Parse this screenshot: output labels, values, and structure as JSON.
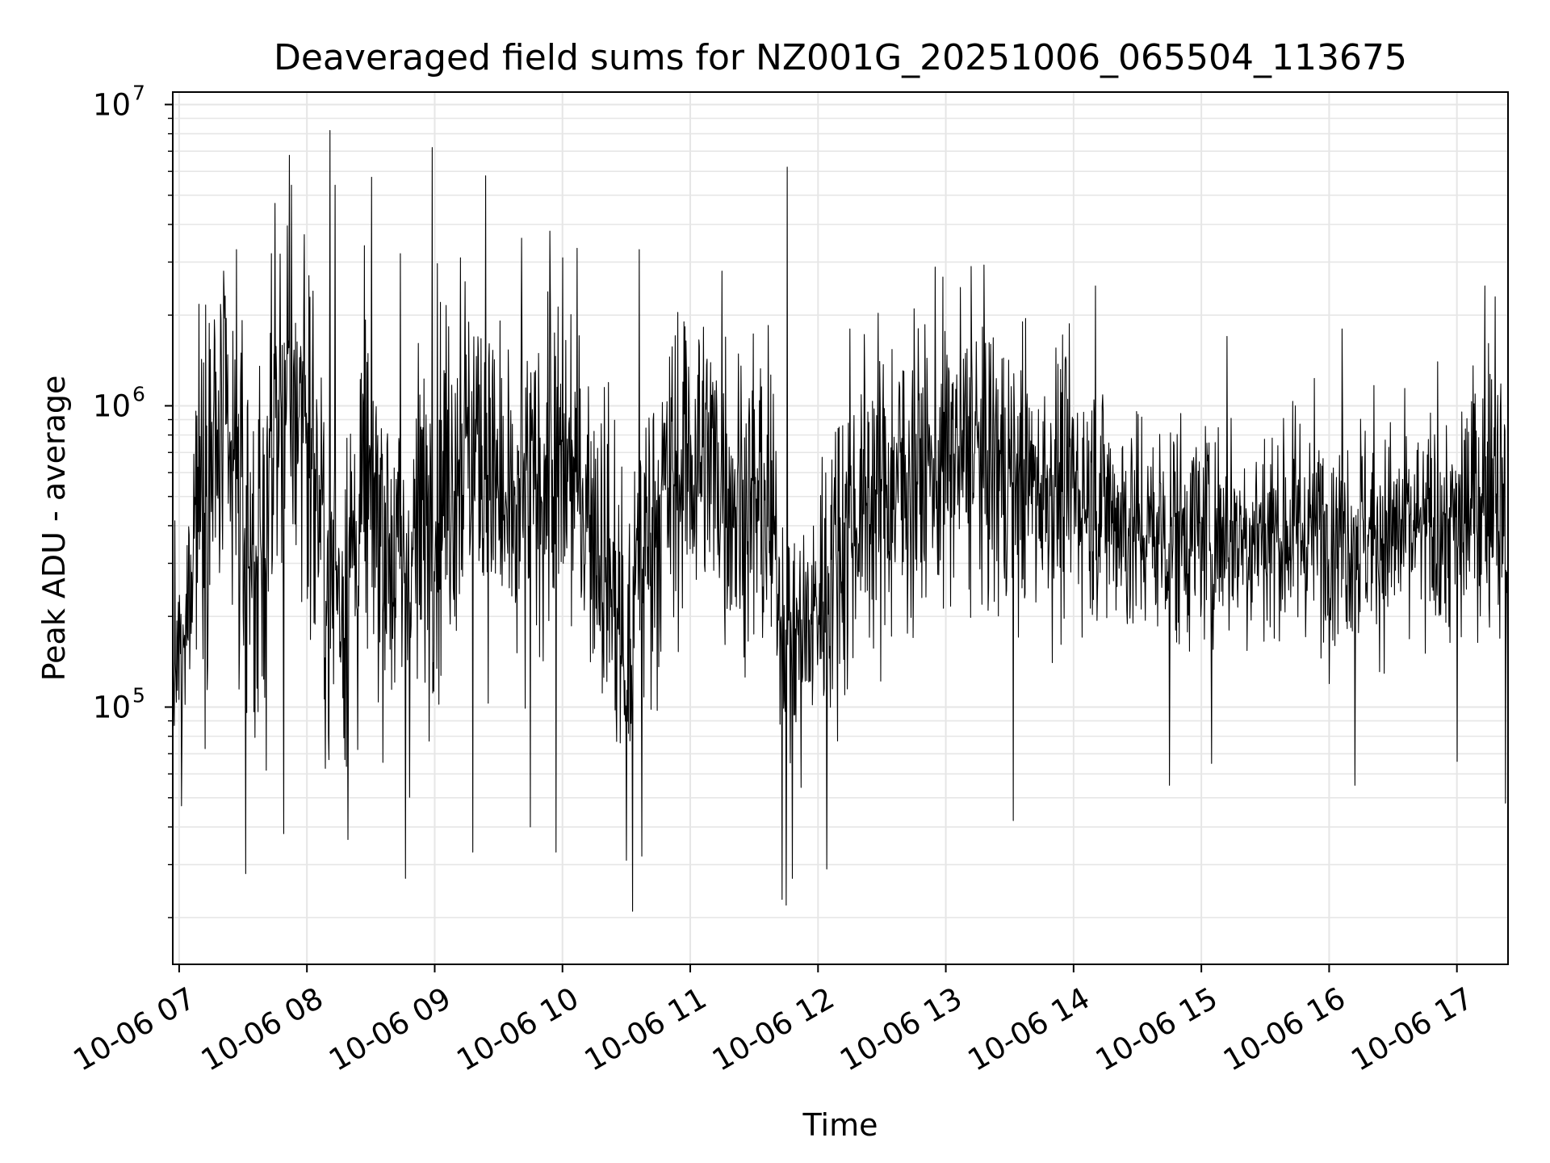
{
  "chart_data": {
    "type": "line",
    "title": "Deaveraged field sums for NZ001G_20251006_065504_113675",
    "xlabel": "Time",
    "ylabel": "Peak ADU - average",
    "yscale": "log",
    "ylim": [
      14000,
      11000000
    ],
    "xlim_hours": [
      6.95,
      17.4
    ],
    "grid": true,
    "line_color": "#000000",
    "grid_color": "#e6e6e6",
    "x_ticks": [
      {
        "hour": 7,
        "label": "10-06 07"
      },
      {
        "hour": 8,
        "label": "10-06 08"
      },
      {
        "hour": 9,
        "label": "10-06 09"
      },
      {
        "hour": 10,
        "label": "10-06 10"
      },
      {
        "hour": 11,
        "label": "10-06 11"
      },
      {
        "hour": 12,
        "label": "10-06 12"
      },
      {
        "hour": 13,
        "label": "10-06 13"
      },
      {
        "hour": 14,
        "label": "10-06 14"
      },
      {
        "hour": 15,
        "label": "10-06 15"
      },
      {
        "hour": 16,
        "label": "10-06 16"
      },
      {
        "hour": 17,
        "label": "10-06 17"
      }
    ],
    "y_ticks": [
      {
        "value": 100000,
        "base": "10",
        "exp": "5"
      },
      {
        "value": 1000000,
        "base": "10",
        "exp": "6"
      },
      {
        "value": 10000000,
        "base": "10",
        "exp": "7"
      }
    ],
    "envelope": {
      "hours": [
        6.95,
        7.05,
        7.15,
        7.3,
        7.5,
        7.65,
        7.8,
        7.95,
        8.15,
        8.3,
        8.5,
        8.75,
        9.0,
        9.3,
        9.6,
        9.85,
        10.1,
        10.35,
        10.5,
        10.65,
        10.85,
        11.1,
        11.35,
        11.6,
        11.72,
        11.78,
        11.95,
        12.1,
        12.4,
        12.8,
        13.2,
        13.6,
        14.0,
        14.5,
        15.0,
        15.5,
        16.0,
        16.5,
        17.0,
        17.15,
        17.3,
        17.37,
        17.4
      ],
      "center": [
        140000,
        140000,
        600000,
        700000,
        420000,
        250000,
        1000000,
        1000000,
        250000,
        250000,
        500000,
        250000,
        500000,
        800000,
        350000,
        600000,
        600000,
        300000,
        130000,
        350000,
        550000,
        700000,
        500000,
        450000,
        200000,
        160000,
        180000,
        300000,
        500000,
        600000,
        700000,
        550000,
        550000,
        380000,
        380000,
        380000,
        400000,
        370000,
        380000,
        500000,
        600000,
        450000,
        120000
      ],
      "spread": [
        0.3,
        0.3,
        0.55,
        0.55,
        0.5,
        0.6,
        0.6,
        0.55,
        0.55,
        0.6,
        0.55,
        0.55,
        0.55,
        0.5,
        0.5,
        0.5,
        0.5,
        0.5,
        0.45,
        0.5,
        0.5,
        0.45,
        0.45,
        0.5,
        0.35,
        0.4,
        0.4,
        0.45,
        0.45,
        0.45,
        0.45,
        0.4,
        0.4,
        0.35,
        0.35,
        0.35,
        0.35,
        0.35,
        0.35,
        0.4,
        0.4,
        0.4,
        0.3
      ]
    },
    "spikes_high": [
      [
        7.35,
        2800000
      ],
      [
        7.45,
        3300000
      ],
      [
        7.72,
        3200000
      ],
      [
        7.75,
        4700000
      ],
      [
        7.88,
        5400000
      ],
      [
        7.98,
        3700000
      ],
      [
        8.18,
        8200000
      ],
      [
        8.22,
        5400000
      ],
      [
        8.45,
        3400000
      ],
      [
        8.73,
        3200000
      ],
      [
        8.98,
        7200000
      ],
      [
        9.2,
        3100000
      ],
      [
        9.4,
        5800000
      ],
      [
        9.68,
        3600000
      ],
      [
        9.9,
        3800000
      ],
      [
        10.0,
        3100000
      ],
      [
        10.6,
        3300000
      ],
      [
        10.95,
        1900000
      ],
      [
        11.25,
        2800000
      ],
      [
        11.76,
        6200000
      ],
      [
        12.25,
        1800000
      ],
      [
        12.75,
        2100000
      ],
      [
        13.2,
        2900000
      ],
      [
        13.35,
        1600000
      ],
      [
        13.6,
        1900000
      ],
      [
        14.17,
        2500000
      ],
      [
        15.2,
        1700000
      ],
      [
        16.1,
        1800000
      ],
      [
        16.85,
        1400000
      ],
      [
        17.22,
        2500000
      ],
      [
        17.3,
        2300000
      ]
    ],
    "spikes_low": [
      [
        7.02,
        47000
      ],
      [
        7.52,
        28000
      ],
      [
        7.82,
        38000
      ],
      [
        8.77,
        27000
      ],
      [
        9.3,
        33000
      ],
      [
        9.75,
        40000
      ],
      [
        9.95,
        33000
      ],
      [
        10.5,
        31000
      ],
      [
        10.55,
        21000
      ],
      [
        10.62,
        32000
      ],
      [
        11.72,
        23000
      ],
      [
        11.75,
        22000
      ],
      [
        11.8,
        27000
      ],
      [
        12.07,
        29000
      ],
      [
        13.53,
        42000
      ],
      [
        14.75,
        55000
      ],
      [
        15.08,
        65000
      ],
      [
        16.2,
        55000
      ],
      [
        17.0,
        66000
      ],
      [
        17.38,
        48000
      ],
      [
        17.4,
        36000
      ]
    ]
  }
}
